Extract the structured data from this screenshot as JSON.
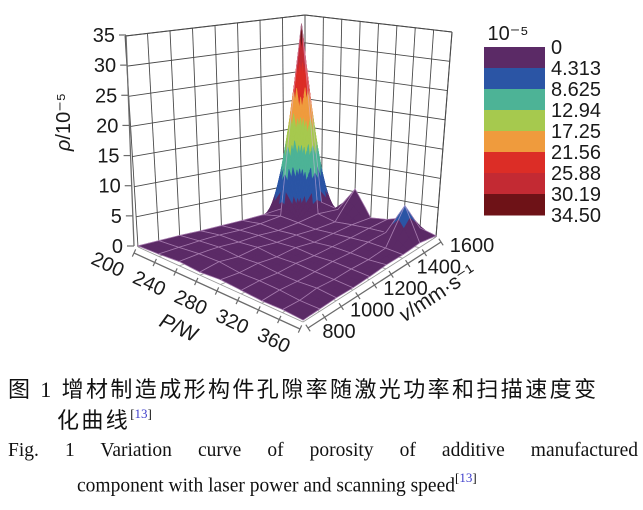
{
  "figure": {
    "zaxis": {
      "label": "ρ/10⁻⁵",
      "ticks": [
        "0",
        "5",
        "10",
        "15",
        "20",
        "25",
        "30",
        "35"
      ],
      "max": 35
    },
    "xaxis": {
      "label": "P/W",
      "ticks": [
        "200",
        "240",
        "280",
        "320",
        "360"
      ],
      "min": 200,
      "max": 360
    },
    "yaxis": {
      "label": "v/mm·s⁻¹",
      "ticks": [
        "800",
        "1000",
        "1200",
        "1400",
        "1600"
      ],
      "min": 800,
      "max": 1600
    },
    "colorbar": {
      "title": "10⁻⁵",
      "labels": [
        "0",
        "4.313",
        "8.625",
        "12.94",
        "17.25",
        "21.56",
        "25.88",
        "30.19",
        "34.50"
      ],
      "colors": [
        "#5b2a66",
        "#2b55a5",
        "#4db396",
        "#a6c94e",
        "#ef9b3d",
        "#dc2d26",
        "#c32a33",
        "#6e1217"
      ]
    }
  },
  "chart_data": {
    "type": "surface3d",
    "title": "",
    "xlabel": "P/W",
    "ylabel": "v/mm·s⁻¹",
    "zlabel": "ρ/10⁻⁵",
    "x_values": [
      200,
      220,
      240,
      260,
      280,
      300,
      320,
      340,
      360
    ],
    "y_values": [
      800,
      900,
      1000,
      1100,
      1200,
      1300,
      1400,
      1500,
      1600
    ],
    "z_grid_rows_by_y": [
      [
        0.2,
        0.4,
        0.7,
        0.5,
        0.8,
        0.6,
        0.4,
        0.5,
        0.3
      ],
      [
        0.3,
        0.6,
        1.0,
        1.1,
        0.7,
        0.8,
        0.7,
        0.4,
        0.4
      ],
      [
        0.4,
        0.8,
        1.1,
        0.8,
        1.0,
        0.7,
        0.6,
        0.8,
        0.5
      ],
      [
        0.4,
        0.9,
        0.9,
        1.2,
        0.8,
        0.9,
        0.7,
        0.6,
        0.4
      ],
      [
        0.5,
        0.8,
        1.0,
        0.9,
        1.1,
        0.8,
        0.9,
        0.7,
        0.5
      ],
      [
        0.6,
        1.0,
        0.8,
        1.0,
        0.7,
        0.9,
        0.8,
        0.6,
        0.7
      ],
      [
        0.8,
        1.4,
        1.1,
        0.8,
        0.9,
        1.0,
        1.1,
        0.9,
        0.6
      ],
      [
        1.2,
        34.5,
        1.6,
        0.9,
        1.1,
        1.2,
        1.2,
        6.5,
        0.8
      ],
      [
        1.8,
        2.0,
        1.3,
        5.5,
        1.0,
        1.3,
        2.2,
        1.0,
        0.2
      ]
    ],
    "levels": [
      0,
      4.313,
      8.625,
      12.94,
      17.25,
      21.56,
      25.88,
      30.19,
      34.5
    ],
    "zlim": [
      0,
      35
    ],
    "peak": {
      "P": 220,
      "v": 1500,
      "rho": 34.5
    }
  },
  "caption_cn": {
    "line1": "图 1  增材制造成形构件孔隙率随激光功率和扫描速度变",
    "line2": "化曲线",
    "ref_open": "[",
    "ref_num": "13",
    "ref_close": "]"
  },
  "caption_en": {
    "line1": "Fig. 1  Variation curve of porosity of additive manufactured",
    "line2": "component with laser power and scanning speed",
    "ref_open": "[",
    "ref_num": "13",
    "ref_close": "]"
  }
}
